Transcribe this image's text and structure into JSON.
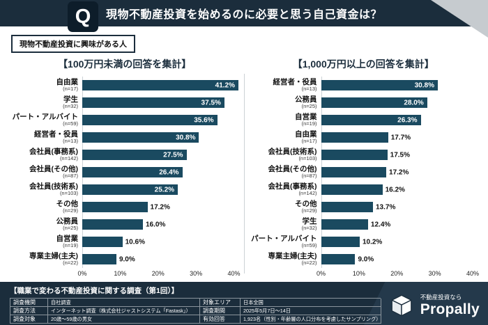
{
  "header": {
    "q_label": "Q",
    "title": "現物不動産投資を始めるのに必要と思う自己資金は？"
  },
  "audience_label": "現物不動産投資に興味がある人",
  "chart_data": [
    {
      "type": "bar",
      "orientation": "horizontal",
      "title": "【100万円未満の回答を集計】",
      "categories": [
        "自由業",
        "学生",
        "パート・アルバイト",
        "経営者・役員",
        "会社員(事務系)",
        "会社員(その他)",
        "会社員(技術系)",
        "その他",
        "公務員",
        "自営業",
        "専業主婦(主夫)"
      ],
      "n_labels": [
        "(n=17)",
        "(n=32)",
        "(n=59)",
        "(n=13)",
        "(n=142)",
        "(n=87)",
        "(n=103)",
        "(n=29)",
        "(n=25)",
        "(n=19)",
        "(n=22)"
      ],
      "values": [
        41.2,
        37.5,
        35.6,
        30.8,
        27.5,
        26.4,
        25.2,
        17.2,
        16.0,
        10.6,
        9.0
      ],
      "value_labels": [
        "41.2%",
        "37.5%",
        "35.6%",
        "30.8%",
        "27.5%",
        "26.4%",
        "25.2%",
        "17.2%",
        "16.0%",
        "10.6%",
        "9.0%"
      ],
      "xlim": [
        0,
        40
      ],
      "x_ticks": [
        "0%",
        "10%",
        "20%",
        "30%",
        "40%"
      ],
      "bar_color": "#1a4a60",
      "grid": false,
      "inside_label_threshold": 20
    },
    {
      "type": "bar",
      "orientation": "horizontal",
      "title": "【1,000万円以上の回答を集計】",
      "categories": [
        "経営者・役員",
        "公務員",
        "自営業",
        "自由業",
        "会社員(技術系)",
        "会社員(その他)",
        "会社員(事務系)",
        "その他",
        "学生",
        "パート・アルバイト",
        "専業主婦(主夫)"
      ],
      "n_labels": [
        "(n=13)",
        "(n=25)",
        "(n=19)",
        "(n=17)",
        "(n=103)",
        "(n=87)",
        "(n=142)",
        "(n=29)",
        "(n=32)",
        "(n=59)",
        "(n=22)"
      ],
      "values": [
        30.8,
        28.0,
        26.3,
        17.7,
        17.5,
        17.2,
        16.2,
        13.7,
        12.4,
        10.2,
        9.0
      ],
      "value_labels": [
        "30.8%",
        "28.0%",
        "26.3%",
        "17.7%",
        "17.5%",
        "17.2%",
        "16.2%",
        "13.7%",
        "12.4%",
        "10.2%",
        "9.0%"
      ],
      "xlim": [
        0,
        40
      ],
      "x_ticks": [
        "0%",
        "10%",
        "20%",
        "30%",
        "40%"
      ],
      "bar_color": "#1a4a60",
      "grid": false,
      "inside_label_threshold": 20
    }
  ],
  "footer": {
    "survey_title": "【職業で変わる不動産投資に関する調査（第1回）】",
    "table": {
      "left": [
        {
          "label": "調査機関",
          "value": "自社調査"
        },
        {
          "label": "調査方法",
          "value": "インターネット調査（株式会社ジャストシステム「Fastask」）"
        },
        {
          "label": "調査対象",
          "value": "20歳〜59歳の男女"
        }
      ],
      "right": [
        {
          "label": "対象エリア",
          "value": "日本全国"
        },
        {
          "label": "調査期間",
          "value": "2025年5月7日〜14日"
        },
        {
          "label": "有効回答",
          "value": "1,923名（性別・年齢層の人口分布を考慮したサンプリング）"
        }
      ]
    },
    "logo": {
      "tagline": "不動産投資なら",
      "name": "Propally"
    }
  },
  "colors": {
    "navy": "#1b2d3c",
    "bar": "#1a4a60",
    "accent_band": "#24394b",
    "corner_gray": "#c6cbcf"
  }
}
